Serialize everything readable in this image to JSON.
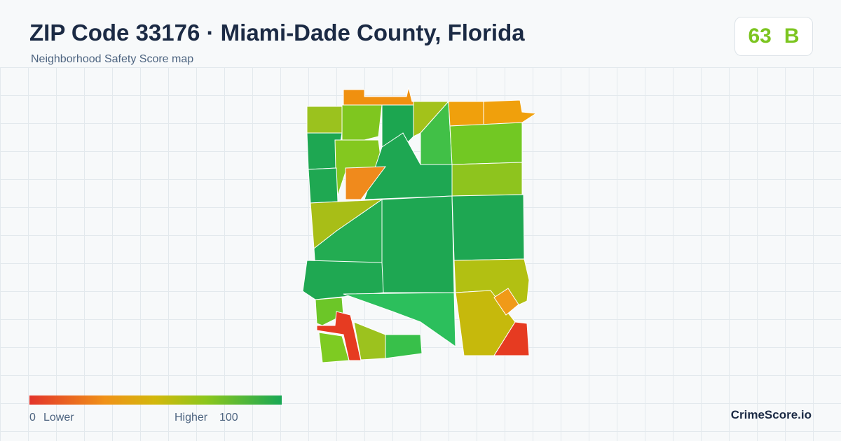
{
  "header": {
    "title": "ZIP Code 33176 · Miami-Dade County, Florida",
    "subtitle": "Neighborhood Safety Score map"
  },
  "score": {
    "value": 63,
    "grade": "B"
  },
  "legend": {
    "min": 0,
    "min_label": "Lower",
    "max_label": "Higher",
    "max": 100
  },
  "brand": "CrimeScore.io"
}
